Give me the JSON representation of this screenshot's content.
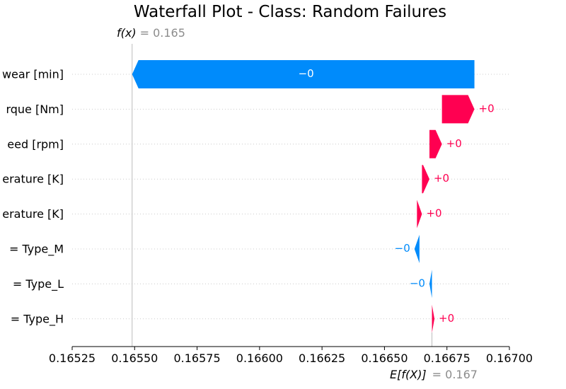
{
  "chart_data": {
    "type": "waterfall",
    "title": "Waterfall Plot - Class: Random Failures",
    "fx_label": "f(x)",
    "fx_value_text": "= 0.165",
    "fx_value": 0.16549,
    "ex_label": "E[f(X)]",
    "ex_value_text": "= 0.167",
    "ex_value": 0.16669,
    "xlim": [
      0.16525,
      0.167
    ],
    "x_ticks": [
      "0.16525",
      "0.16550",
      "0.16575",
      "0.16600",
      "0.16625",
      "0.16650",
      "0.16675",
      "0.16700"
    ],
    "tick_values": [
      0.16525,
      0.1655,
      0.16575,
      0.166,
      0.16625,
      0.1665,
      0.16675,
      0.167
    ],
    "features": [
      {
        "label": "wear [min]",
        "value_label": "−0",
        "start": 0.16686,
        "end": 0.16549,
        "sign": "negative"
      },
      {
        "label": "rque [Nm]",
        "value_label": "+0",
        "start": 0.16673,
        "end": 0.16686,
        "sign": "positive"
      },
      {
        "label": "eed [rpm]",
        "value_label": "+0",
        "start": 0.16668,
        "end": 0.16673,
        "sign": "positive"
      },
      {
        "label": "erature [K]",
        "value_label": "+0",
        "start": 0.16665,
        "end": 0.16668,
        "sign": "positive"
      },
      {
        "label": "erature [K]",
        "value_label": "+0",
        "start": 0.16663,
        "end": 0.16665,
        "sign": "positive"
      },
      {
        "label": "= Type_M",
        "value_label": "−0",
        "start": 0.16664,
        "end": 0.16662,
        "sign": "negative"
      },
      {
        "label": "= Type_L",
        "value_label": "−0",
        "start": 0.16669,
        "end": 0.16668,
        "sign": "negative"
      },
      {
        "label": "= Type_H",
        "value_label": "+0",
        "start": 0.16669,
        "end": 0.1667,
        "sign": "positive"
      }
    ],
    "colors": {
      "positive": "#ff0051",
      "negative": "#008bfb",
      "axis": "#000000",
      "muted": "#8c8c8c"
    }
  }
}
